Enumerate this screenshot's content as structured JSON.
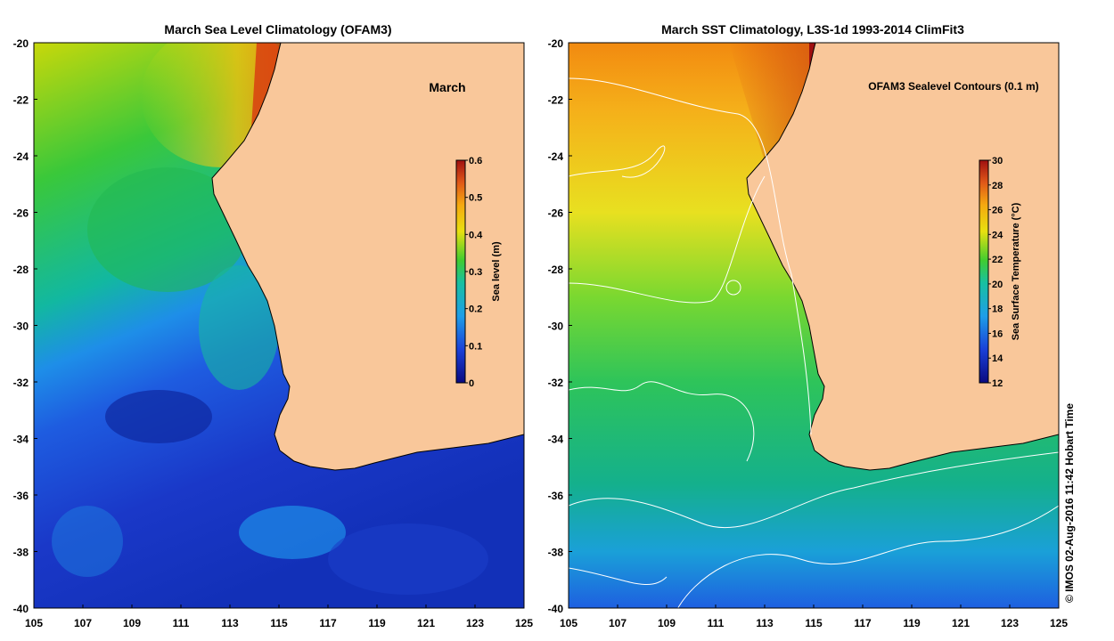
{
  "left_map": {
    "title": "March Sea Level Climatology (OFAM3)",
    "annotation": "March",
    "colorbar": {
      "label": "Sea level (m)",
      "ticks": [
        "0",
        "0.1",
        "0.2",
        "0.3",
        "0.4",
        "0.5",
        "0.6"
      ],
      "min": 0,
      "max": 0.6
    }
  },
  "right_map": {
    "title": "March SST Climatology, L3S-1d 1993-2014 ClimFit3",
    "annotation": "OFAM3 Sealevel Contours (0.1 m)",
    "colorbar": {
      "label": "Sea Surface Temperature (°C)",
      "ticks": [
        "12",
        "14",
        "16",
        "18",
        "20",
        "22",
        "24",
        "26",
        "28",
        "30"
      ],
      "min": 12,
      "max": 30
    }
  },
  "axes": {
    "lon_ticks": [
      "105",
      "107",
      "109",
      "111",
      "113",
      "115",
      "117",
      "119",
      "121",
      "123",
      "125"
    ],
    "lat_ticks": [
      "-20",
      "-22",
      "-24",
      "-26",
      "-28",
      "-30",
      "-32",
      "-34",
      "-36",
      "-38",
      "-40"
    ],
    "lon_range": [
      105,
      125
    ],
    "lat_range": [
      -40,
      -20
    ]
  },
  "credit": "© IMOS 02-Aug-2016 11:42 Hobart Time",
  "colors": {
    "land": "#f9c79a",
    "coast": "#000000",
    "contour": "#ffffff"
  }
}
